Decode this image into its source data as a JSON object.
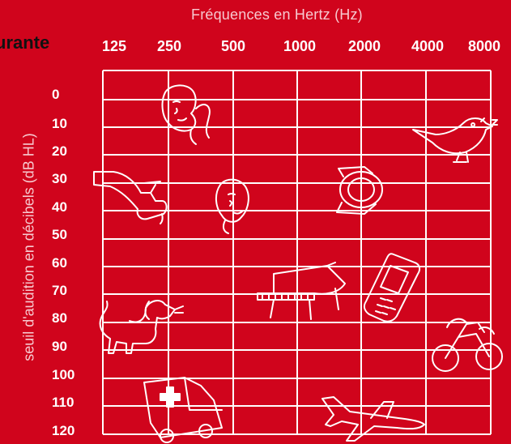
{
  "header": {
    "title": "Fréquences en Hertz (Hz)",
    "cut_title": "urante"
  },
  "y_axis_label": "seuil d'audition en décibels (dB HL)",
  "frequencies": [
    "125",
    "250",
    "500",
    "1000",
    "2000",
    "4000",
    "8000"
  ],
  "decibels": [
    "0",
    "10",
    "20",
    "30",
    "40",
    "50",
    "60",
    "70",
    "80",
    "90",
    "100",
    "110",
    "120"
  ],
  "illustrations": [
    "whispering-person-icon",
    "singing-bird-icon",
    "dripping-faucet-icon",
    "wristwatch-icon",
    "talking-person-icon",
    "piano-icon",
    "mobile-phone-icon",
    "barking-dog-icon",
    "motorcycle-icon",
    "ambulance-icon",
    "airplane-icon"
  ],
  "colors": {
    "background": "#d0041c",
    "grid": "#ffffff",
    "title": "#f7c9cf"
  }
}
